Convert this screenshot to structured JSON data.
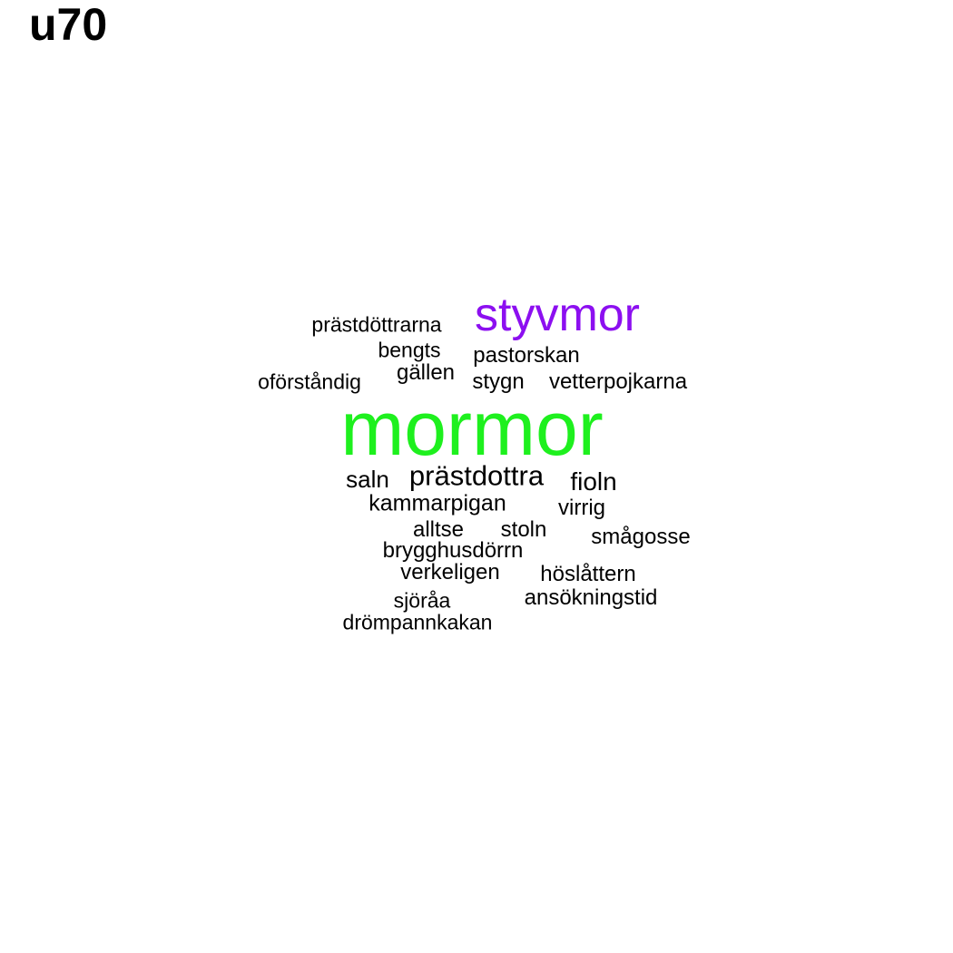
{
  "title": "u70",
  "colors": {
    "background": "#ffffff",
    "text": "#000000",
    "accent_green": "#1ef01e",
    "accent_purple": "#8c0ff0"
  },
  "words": [
    {
      "text": "mormor",
      "color": "#1ef01e"
    },
    {
      "text": "styvmor",
      "color": "#8c0ff0"
    },
    {
      "text": "prästdöttrarna",
      "color": "#000000"
    },
    {
      "text": "bengts",
      "color": "#000000"
    },
    {
      "text": "pastorskan",
      "color": "#000000"
    },
    {
      "text": "gällen",
      "color": "#000000"
    },
    {
      "text": "oförståndig",
      "color": "#000000"
    },
    {
      "text": "stygn",
      "color": "#000000"
    },
    {
      "text": "vetterpojkarna",
      "color": "#000000"
    },
    {
      "text": "saln",
      "color": "#000000"
    },
    {
      "text": "prästdottra",
      "color": "#000000"
    },
    {
      "text": "fioln",
      "color": "#000000"
    },
    {
      "text": "kammarpigan",
      "color": "#000000"
    },
    {
      "text": "virrig",
      "color": "#000000"
    },
    {
      "text": "alltse",
      "color": "#000000"
    },
    {
      "text": "stoln",
      "color": "#000000"
    },
    {
      "text": "smågosse",
      "color": "#000000"
    },
    {
      "text": "brygghusdörrn",
      "color": "#000000"
    },
    {
      "text": "verkeligen",
      "color": "#000000"
    },
    {
      "text": "höslåttern",
      "color": "#000000"
    },
    {
      "text": "ansökningstid",
      "color": "#000000"
    },
    {
      "text": "sjöråa",
      "color": "#000000"
    },
    {
      "text": "drömpannkakan",
      "color": "#000000"
    }
  ]
}
